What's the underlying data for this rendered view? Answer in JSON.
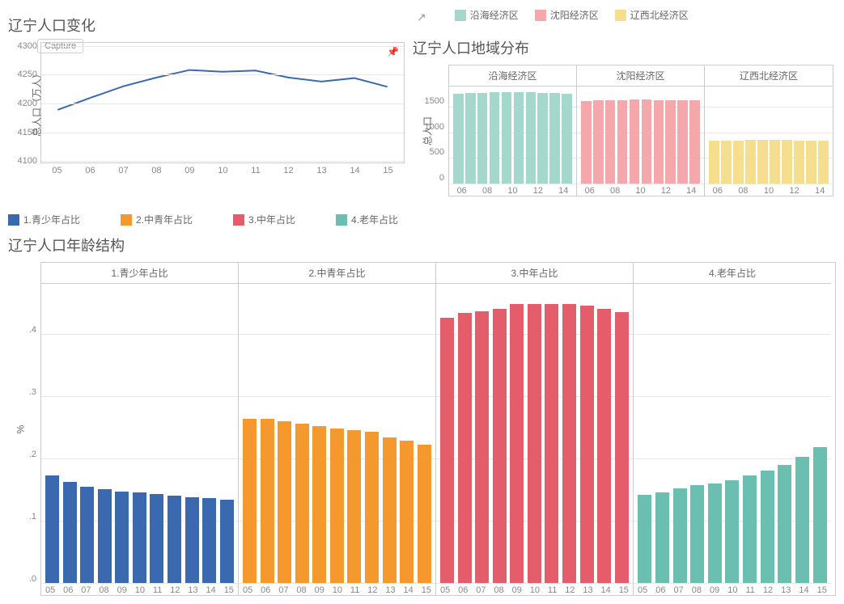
{
  "colors": {
    "blue": "#3a69b0",
    "orange": "#f5992e",
    "red": "#e35d6a",
    "teal": "#6abfb0",
    "coastal": "#a4d8cc",
    "shenyang": "#f4a8ab",
    "northwest": "#f5df8f",
    "axis_text": "#888888",
    "panel_border": "#cccccc",
    "grid": "#e8e8e8",
    "title": "#555555",
    "line": "#3a69b0"
  },
  "line_chart": {
    "title": "辽宁人口变化",
    "y_label": "总人口（万人）",
    "y_ticks": [
      4100,
      4150,
      4200,
      4250,
      4300
    ],
    "ylim": [
      4095,
      4305
    ],
    "x_labels": [
      "05",
      "06",
      "07",
      "08",
      "09",
      "10",
      "11",
      "12",
      "13",
      "14",
      "15"
    ],
    "values": [
      4189,
      4210,
      4230,
      4245,
      4258,
      4255,
      4257,
      4245,
      4238,
      4244,
      4229
    ],
    "capture_label": "Capture",
    "line_color": "#3a69b0",
    "line_width": 2
  },
  "region_chart": {
    "title": "辽宁人口地域分布",
    "y_label": "总人口",
    "legend": [
      {
        "label": "沿海经济区",
        "color": "#a4d8cc"
      },
      {
        "label": "沈阳经济区",
        "color": "#f4a8ab"
      },
      {
        "label": "辽西北经济区",
        "color": "#f5df8f"
      }
    ],
    "y_ticks": [
      0,
      500,
      1000,
      1500
    ],
    "ylim": [
      0,
      1900
    ],
    "x_labels": [
      "06",
      "08",
      "10",
      "12",
      "14"
    ],
    "panels": [
      {
        "name": "沿海经济区",
        "color": "#a4d8cc",
        "values": [
          1760,
          1770,
          1780,
          1790,
          1795,
          1790,
          1785,
          1780,
          1770,
          1760
        ]
      },
      {
        "name": "沈阳经济区",
        "color": "#f4a8ab",
        "values": [
          1620,
          1625,
          1630,
          1635,
          1640,
          1640,
          1638,
          1635,
          1632,
          1628
        ]
      },
      {
        "name": "辽西北经济区",
        "color": "#f5df8f",
        "values": [
          840,
          842,
          845,
          848,
          850,
          850,
          848,
          846,
          844,
          840
        ]
      }
    ]
  },
  "age_legend": [
    {
      "label": "1.青少年占比",
      "color": "#3a69b0"
    },
    {
      "label": "2.中青年占比",
      "color": "#f5992e"
    },
    {
      "label": "3.中年占比",
      "color": "#e35d6a"
    },
    {
      "label": "4.老年占比",
      "color": "#6abfb0"
    }
  ],
  "age_chart": {
    "title": "辽宁人口年龄结构",
    "y_label": "%",
    "y_ticks": [
      0.0,
      0.1,
      0.2,
      0.3,
      0.4
    ],
    "y_tick_labels": [
      ".0",
      ".1",
      ".2",
      ".3",
      ".4"
    ],
    "ylim": [
      0,
      0.48
    ],
    "x_labels": [
      "05",
      "06",
      "07",
      "08",
      "09",
      "10",
      "11",
      "12",
      "13",
      "14",
      "15"
    ],
    "panels": [
      {
        "name": "1.青少年占比",
        "color": "#3a69b0",
        "values": [
          0.172,
          0.162,
          0.155,
          0.15,
          0.147,
          0.145,
          0.143,
          0.14,
          0.138,
          0.136,
          0.134
        ]
      },
      {
        "name": "2.中青年占比",
        "color": "#f5992e",
        "values": [
          0.264,
          0.263,
          0.26,
          0.255,
          0.252,
          0.248,
          0.245,
          0.242,
          0.234,
          0.228,
          0.222
        ]
      },
      {
        "name": "3.中年占比",
        "color": "#e35d6a",
        "values": [
          0.426,
          0.433,
          0.436,
          0.44,
          0.448,
          0.448,
          0.448,
          0.447,
          0.445,
          0.44,
          0.434
        ]
      },
      {
        "name": "4.老年占比",
        "color": "#6abfb0",
        "values": [
          0.142,
          0.145,
          0.152,
          0.157,
          0.16,
          0.165,
          0.172,
          0.18,
          0.19,
          0.202,
          0.218
        ]
      }
    ]
  },
  "typography": {
    "title_fontsize": 18,
    "axis_fontsize": 11,
    "legend_fontsize": 12
  }
}
